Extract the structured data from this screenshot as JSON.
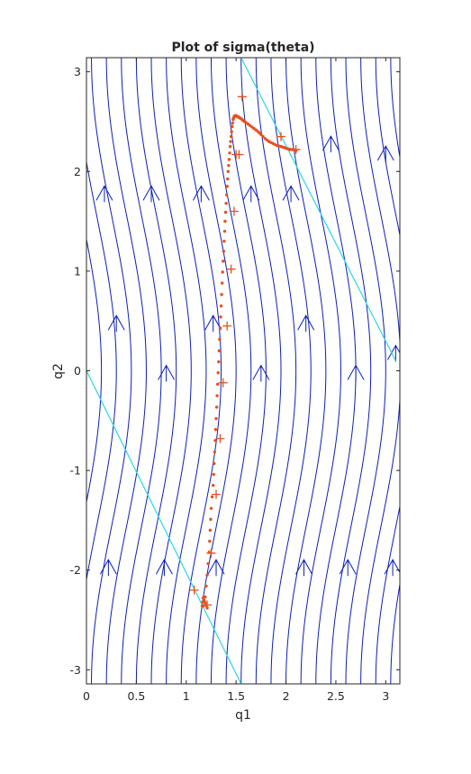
{
  "chart_data": {
    "type": "line",
    "title": "Plot of sigma(theta)",
    "xlabel": "q1",
    "ylabel": "q2",
    "xlim": [
      0,
      3.14159
    ],
    "ylim": [
      -3.14159,
      3.14159
    ],
    "x_ticks": [
      "0",
      "0.5",
      "1",
      "1.5",
      "2",
      "2.5",
      "3"
    ],
    "y_ticks": [
      "-3",
      "-2",
      "-1",
      "0",
      "1",
      "2",
      "3"
    ],
    "grid": false,
    "legend": "none",
    "colors": {
      "flow_lines": "#0c1fb5",
      "boundary_lines": "#2bd7e3",
      "trajectory": "#e8501c",
      "markers": "#e8501c"
    },
    "flow_curves": {
      "shape": "q1 = c + 0.2 * cos(q2)",
      "offsets_c": [
        -0.65,
        -0.5,
        -0.35,
        -0.2,
        -0.05,
        0.1,
        0.25,
        0.4,
        0.55,
        0.7,
        0.85,
        1.0,
        1.15,
        1.3,
        1.45,
        1.6,
        1.75,
        1.9,
        2.05,
        2.2,
        2.35,
        2.5,
        2.65,
        2.8,
        2.95,
        3.1,
        3.25,
        3.4
      ]
    },
    "arrowheads": [
      {
        "q1": 0.18,
        "q2": 1.8
      },
      {
        "q1": 0.65,
        "q2": 1.8
      },
      {
        "q1": 1.15,
        "q2": 1.8
      },
      {
        "q1": 1.65,
        "q2": 1.8
      },
      {
        "q1": 2.05,
        "q2": 1.8
      },
      {
        "q1": 2.45,
        "q2": 2.3
      },
      {
        "q1": 3.0,
        "q2": 2.2
      },
      {
        "q1": 0.3,
        "q2": 0.5
      },
      {
        "q1": 1.27,
        "q2": 0.5
      },
      {
        "q1": 2.2,
        "q2": 0.5
      },
      {
        "q1": 3.1,
        "q2": 0.2
      },
      {
        "q1": 0.8,
        "q2": 0.0
      },
      {
        "q1": 1.75,
        "q2": 0.0
      },
      {
        "q1": 2.7,
        "q2": 0.0
      },
      {
        "q1": 0.22,
        "q2": -1.95
      },
      {
        "q1": 0.78,
        "q2": -1.95
      },
      {
        "q1": 1.3,
        "q2": -1.95
      },
      {
        "q1": 2.18,
        "q2": -1.95
      },
      {
        "q1": 2.62,
        "q2": -1.95
      },
      {
        "q1": 3.07,
        "q2": -1.95
      }
    ],
    "series": [
      {
        "type": "line",
        "color": "#2bd7e3",
        "x": [
          0.0,
          1.55
        ],
        "y": [
          0.0,
          -3.14159
        ]
      },
      {
        "type": "line",
        "color": "#2bd7e3",
        "x": [
          1.55,
          3.1
        ],
        "y": [
          3.14159,
          0.1
        ]
      },
      {
        "type": "dotted-line",
        "color": "#e8501c",
        "x": [
          1.21,
          1.19,
          1.17,
          1.16,
          1.17,
          1.19,
          1.21,
          1.23,
          1.24,
          1.25,
          1.27,
          1.28,
          1.29,
          1.3,
          1.31,
          1.32,
          1.33,
          1.34,
          1.35,
          1.36,
          1.37,
          1.38,
          1.39,
          1.4,
          1.41,
          1.42,
          1.43,
          1.44,
          1.45,
          1.46,
          1.47,
          1.48,
          1.49,
          1.5,
          1.51,
          1.52,
          1.53,
          1.55,
          1.57,
          1.6,
          1.64,
          1.68,
          1.72,
          1.75,
          1.79,
          1.83,
          1.87,
          1.91,
          1.95,
          1.98,
          2.01,
          2.04,
          2.07,
          2.1
        ],
        "y": [
          -2.38,
          -2.33,
          -2.28,
          -2.36,
          -2.36,
          -2.27,
          -2.05,
          -1.82,
          -1.6,
          -1.38,
          -1.15,
          -0.93,
          -0.7,
          -0.48,
          -0.25,
          -0.02,
          0.2,
          0.43,
          0.65,
          0.88,
          1.1,
          1.3,
          1.5,
          1.68,
          1.85,
          2.0,
          2.12,
          2.25,
          2.35,
          2.45,
          2.52,
          2.55,
          2.56,
          2.56,
          2.55,
          2.55,
          2.54,
          2.53,
          2.51,
          2.49,
          2.46,
          2.43,
          2.4,
          2.37,
          2.33,
          2.3,
          2.28,
          2.26,
          2.25,
          2.24,
          2.23,
          2.22,
          2.22,
          2.21
        ]
      },
      {
        "type": "markers",
        "marker": "+",
        "color": "#e8501c",
        "x": [
          1.08,
          1.21,
          1.25,
          1.3,
          1.34,
          1.37,
          1.41,
          1.45,
          1.48,
          1.5,
          1.53,
          1.56,
          1.95,
          2.1
        ],
        "y": [
          -2.2,
          -2.35,
          -1.83,
          -1.24,
          -0.68,
          -0.12,
          0.45,
          1.02,
          1.6,
          2.17,
          2.17,
          2.75,
          2.35,
          2.22
        ]
      }
    ]
  }
}
